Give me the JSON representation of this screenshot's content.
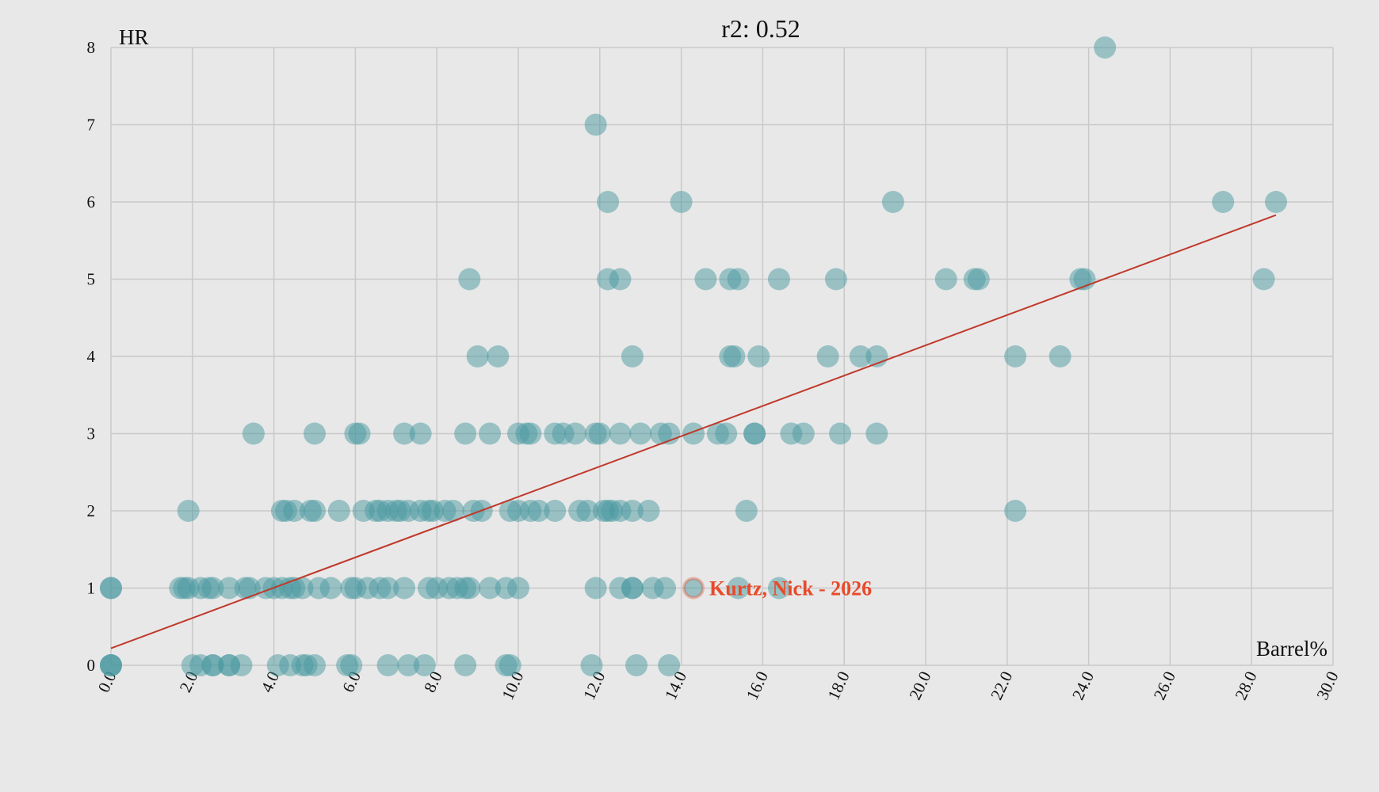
{
  "chart_data": {
    "type": "scatter",
    "title": "r2: 0.52",
    "xlabel": "Barrel%",
    "ylabel": "HR",
    "xlim": [
      0,
      30
    ],
    "ylim": [
      0,
      8
    ],
    "x_ticks": [
      "0.0",
      "2.0",
      "4.0",
      "6.0",
      "8.0",
      "10.0",
      "12.0",
      "14.0",
      "16.0",
      "18.0",
      "20.0",
      "22.0",
      "24.0",
      "26.0",
      "28.0",
      "30.0"
    ],
    "y_ticks": [
      "0",
      "1",
      "2",
      "3",
      "4",
      "5",
      "6",
      "7",
      "8"
    ],
    "grid": true,
    "colors": {
      "point": "#4a9aa0",
      "trend": "#c0392b",
      "highlight": "#e84a2a"
    },
    "trendline": {
      "x": [
        0,
        28.6
      ],
      "y": [
        0.22,
        5.83
      ]
    },
    "highlight": {
      "label": "Kurtz, Nick - 2026",
      "x": 14.3,
      "y": 1
    },
    "points": [
      [
        0.0,
        1
      ],
      [
        0.0,
        1
      ],
      [
        0.0,
        0
      ],
      [
        0.0,
        0
      ],
      [
        0.0,
        0
      ],
      [
        24.4,
        8
      ],
      [
        11.9,
        7
      ],
      [
        12.2,
        6
      ],
      [
        14.0,
        6
      ],
      [
        19.2,
        6
      ],
      [
        27.3,
        6
      ],
      [
        28.6,
        6
      ],
      [
        8.8,
        5
      ],
      [
        12.2,
        5
      ],
      [
        12.5,
        5
      ],
      [
        14.6,
        5
      ],
      [
        15.2,
        5
      ],
      [
        15.4,
        5
      ],
      [
        16.4,
        5
      ],
      [
        17.8,
        5
      ],
      [
        20.5,
        5
      ],
      [
        21.2,
        5
      ],
      [
        21.3,
        5
      ],
      [
        23.8,
        5
      ],
      [
        23.9,
        5
      ],
      [
        28.3,
        5
      ],
      [
        9.0,
        4
      ],
      [
        9.5,
        4
      ],
      [
        12.8,
        4
      ],
      [
        15.2,
        4
      ],
      [
        15.3,
        4
      ],
      [
        15.9,
        4
      ],
      [
        17.6,
        4
      ],
      [
        18.4,
        4
      ],
      [
        18.8,
        4
      ],
      [
        22.2,
        4
      ],
      [
        23.3,
        4
      ],
      [
        3.5,
        3
      ],
      [
        5.0,
        3
      ],
      [
        6.0,
        3
      ],
      [
        6.1,
        3
      ],
      [
        7.2,
        3
      ],
      [
        7.6,
        3
      ],
      [
        8.7,
        3
      ],
      [
        9.3,
        3
      ],
      [
        10.0,
        3
      ],
      [
        10.2,
        3
      ],
      [
        10.3,
        3
      ],
      [
        10.9,
        3
      ],
      [
        11.1,
        3
      ],
      [
        11.4,
        3
      ],
      [
        11.9,
        3
      ],
      [
        12.0,
        3
      ],
      [
        12.5,
        3
      ],
      [
        13.0,
        3
      ],
      [
        13.5,
        3
      ],
      [
        13.7,
        3
      ],
      [
        14.3,
        3
      ],
      [
        14.9,
        3
      ],
      [
        15.1,
        3
      ],
      [
        15.8,
        3
      ],
      [
        15.8,
        3
      ],
      [
        16.7,
        3
      ],
      [
        17.0,
        3
      ],
      [
        17.9,
        3
      ],
      [
        18.8,
        3
      ],
      [
        1.9,
        2
      ],
      [
        4.2,
        2
      ],
      [
        4.3,
        2
      ],
      [
        4.5,
        2
      ],
      [
        4.9,
        2
      ],
      [
        5.0,
        2
      ],
      [
        5.6,
        2
      ],
      [
        6.2,
        2
      ],
      [
        6.5,
        2
      ],
      [
        6.6,
        2
      ],
      [
        6.8,
        2
      ],
      [
        7.0,
        2
      ],
      [
        7.1,
        2
      ],
      [
        7.3,
        2
      ],
      [
        7.6,
        2
      ],
      [
        7.8,
        2
      ],
      [
        7.9,
        2
      ],
      [
        8.2,
        2
      ],
      [
        8.4,
        2
      ],
      [
        8.9,
        2
      ],
      [
        9.1,
        2
      ],
      [
        9.8,
        2
      ],
      [
        10.0,
        2
      ],
      [
        10.3,
        2
      ],
      [
        10.5,
        2
      ],
      [
        10.9,
        2
      ],
      [
        11.5,
        2
      ],
      [
        11.7,
        2
      ],
      [
        12.1,
        2
      ],
      [
        12.2,
        2
      ],
      [
        12.3,
        2
      ],
      [
        12.5,
        2
      ],
      [
        12.8,
        2
      ],
      [
        13.2,
        2
      ],
      [
        15.6,
        2
      ],
      [
        22.2,
        2
      ],
      [
        1.7,
        1
      ],
      [
        1.8,
        1
      ],
      [
        1.9,
        1
      ],
      [
        2.2,
        1
      ],
      [
        2.4,
        1
      ],
      [
        2.5,
        1
      ],
      [
        2.9,
        1
      ],
      [
        3.3,
        1
      ],
      [
        3.4,
        1
      ],
      [
        3.8,
        1
      ],
      [
        4.0,
        1
      ],
      [
        4.2,
        1
      ],
      [
        4.4,
        1
      ],
      [
        4.5,
        1
      ],
      [
        4.7,
        1
      ],
      [
        5.1,
        1
      ],
      [
        5.4,
        1
      ],
      [
        5.9,
        1
      ],
      [
        6.0,
        1
      ],
      [
        6.3,
        1
      ],
      [
        6.6,
        1
      ],
      [
        6.8,
        1
      ],
      [
        7.2,
        1
      ],
      [
        7.8,
        1
      ],
      [
        8.0,
        1
      ],
      [
        8.3,
        1
      ],
      [
        8.5,
        1
      ],
      [
        8.7,
        1
      ],
      [
        8.8,
        1
      ],
      [
        9.3,
        1
      ],
      [
        9.7,
        1
      ],
      [
        10.0,
        1
      ],
      [
        11.9,
        1
      ],
      [
        12.5,
        1
      ],
      [
        12.8,
        1
      ],
      [
        12.8,
        1
      ],
      [
        13.3,
        1
      ],
      [
        13.6,
        1
      ],
      [
        15.4,
        1
      ],
      [
        16.4,
        1
      ],
      [
        2.0,
        0
      ],
      [
        2.2,
        0
      ],
      [
        2.5,
        0
      ],
      [
        2.5,
        0
      ],
      [
        2.9,
        0
      ],
      [
        2.9,
        0
      ],
      [
        3.2,
        0
      ],
      [
        4.1,
        0
      ],
      [
        4.4,
        0
      ],
      [
        4.7,
        0
      ],
      [
        4.8,
        0
      ],
      [
        5.0,
        0
      ],
      [
        5.8,
        0
      ],
      [
        5.9,
        0
      ],
      [
        6.8,
        0
      ],
      [
        7.3,
        0
      ],
      [
        7.7,
        0
      ],
      [
        8.7,
        0
      ],
      [
        9.7,
        0
      ],
      [
        9.8,
        0
      ],
      [
        11.8,
        0
      ],
      [
        12.9,
        0
      ],
      [
        13.7,
        0
      ]
    ]
  }
}
